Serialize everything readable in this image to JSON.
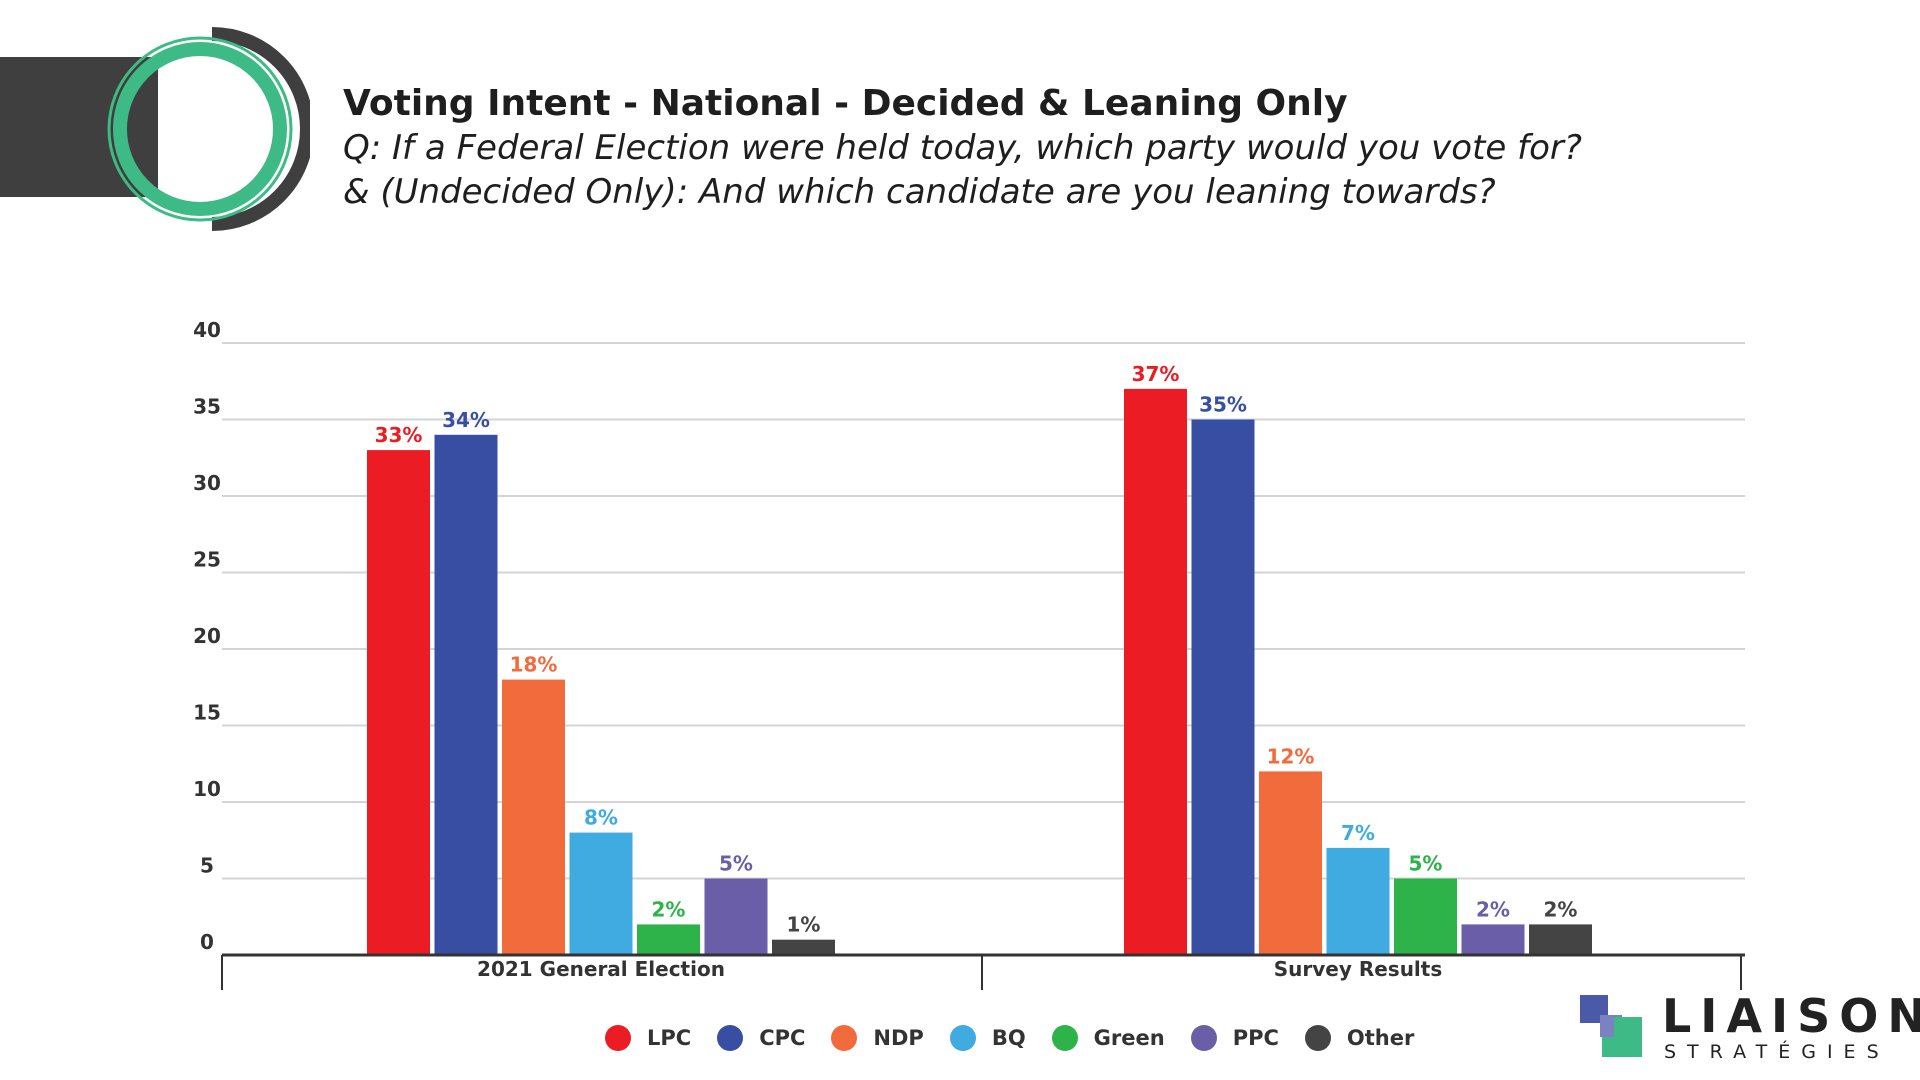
{
  "header": {
    "title": "Voting Intent - National - Decided & Leaning Only",
    "subtitle_line1": "Q: If a Federal Election were held today, which party would you vote for?",
    "subtitle_line2": "& (Undecided Only): And which candidate are you leaning towards?"
  },
  "chart_data": {
    "type": "bar",
    "title": "",
    "xlabel": "",
    "ylabel": "",
    "ylim": [
      0,
      40
    ],
    "yticks": [
      0,
      5,
      10,
      15,
      20,
      25,
      30,
      35,
      40
    ],
    "categories": [
      "2021 General Election",
      "Survey Results"
    ],
    "series": [
      {
        "name": "LPC",
        "color": "#ec1c24",
        "values": [
          33,
          37
        ],
        "labels": [
          "33%",
          "37%"
        ]
      },
      {
        "name": "CPC",
        "color": "#374ea2",
        "values": [
          34,
          35
        ],
        "labels": [
          "34%",
          "35%"
        ]
      },
      {
        "name": "NDP",
        "color": "#f26b3d",
        "values": [
          18,
          12
        ],
        "labels": [
          "18%",
          "12%"
        ]
      },
      {
        "name": "BQ",
        "color": "#3fabe0",
        "values": [
          8,
          7
        ],
        "labels": [
          "8%",
          "7%"
        ]
      },
      {
        "name": "Green",
        "color": "#2db34a",
        "values": [
          2,
          5
        ],
        "labels": [
          "2%",
          "5%"
        ]
      },
      {
        "name": "PPC",
        "color": "#6b5ea8",
        "values": [
          5,
          2
        ],
        "labels": [
          "5%",
          "2%"
        ]
      },
      {
        "name": "Other",
        "color": "#444444",
        "values": [
          1,
          2
        ],
        "labels": [
          "1%",
          "2%"
        ]
      }
    ],
    "grid": true,
    "legend_position": "bottom"
  },
  "logo": {
    "word": "LIAISON",
    "sub": "STRATÉGIES"
  },
  "colors": {
    "accent_green": "#3dba85",
    "dark": "#3f3f3f"
  }
}
